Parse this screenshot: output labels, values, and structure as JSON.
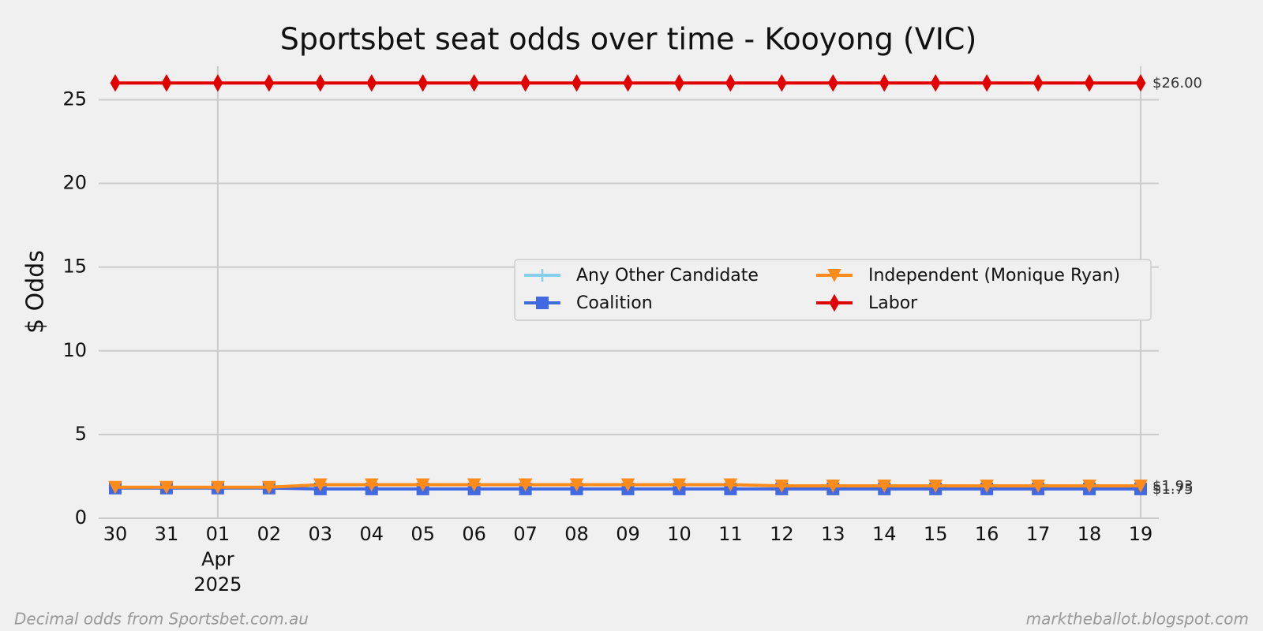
{
  "chart_data": {
    "type": "line",
    "title": "Sportsbet seat odds over time - Kooyong (VIC)",
    "y_label": "$ Odds",
    "categories": [
      "30",
      "31",
      "01",
      "02",
      "03",
      "04",
      "05",
      "06",
      "07",
      "08",
      "09",
      "10",
      "11",
      "12",
      "13",
      "14",
      "15",
      "16",
      "17",
      "18",
      "19"
    ],
    "month_label": "Apr",
    "year_label": "2025",
    "ylim": [
      0,
      27
    ],
    "yticks": [
      0,
      5,
      10,
      15,
      20,
      25
    ],
    "grid": true,
    "legend_position": "center-right",
    "series": [
      {
        "name": "Any Other Candidate",
        "color": "#87ceeb",
        "marker": "plus",
        "values": [
          null,
          null,
          null,
          null,
          null,
          null,
          null,
          null,
          null,
          null,
          null,
          null,
          null,
          null,
          null,
          null,
          null,
          null,
          null,
          null,
          null
        ]
      },
      {
        "name": "Coalition",
        "color": "#4169e1",
        "marker": "square",
        "values": [
          1.8,
          1.8,
          1.8,
          1.8,
          1.75,
          1.75,
          1.75,
          1.75,
          1.75,
          1.75,
          1.75,
          1.75,
          1.75,
          1.75,
          1.75,
          1.75,
          1.75,
          1.75,
          1.75,
          1.75,
          1.75
        ],
        "end_label": "$1.75"
      },
      {
        "name": "Independent (Monique Ryan)",
        "color": "#ff8c1a",
        "marker": "triangle-down",
        "values": [
          1.85,
          1.85,
          1.85,
          1.85,
          2.0,
          2.0,
          2.0,
          2.0,
          2.0,
          2.0,
          2.0,
          2.0,
          2.0,
          1.93,
          1.93,
          1.93,
          1.93,
          1.93,
          1.93,
          1.93,
          1.93
        ],
        "end_label": "$1.93"
      },
      {
        "name": "Labor",
        "color": "#e00000",
        "marker": "diamond",
        "values": [
          26,
          26,
          26,
          26,
          26,
          26,
          26,
          26,
          26,
          26,
          26,
          26,
          26,
          26,
          26,
          26,
          26,
          26,
          26,
          26,
          26
        ],
        "end_label": "$26.00"
      }
    ],
    "footnote_left": "Decimal odds from Sportsbet.com.au",
    "footnote_right": "marktheballot.blogspot.com"
  }
}
